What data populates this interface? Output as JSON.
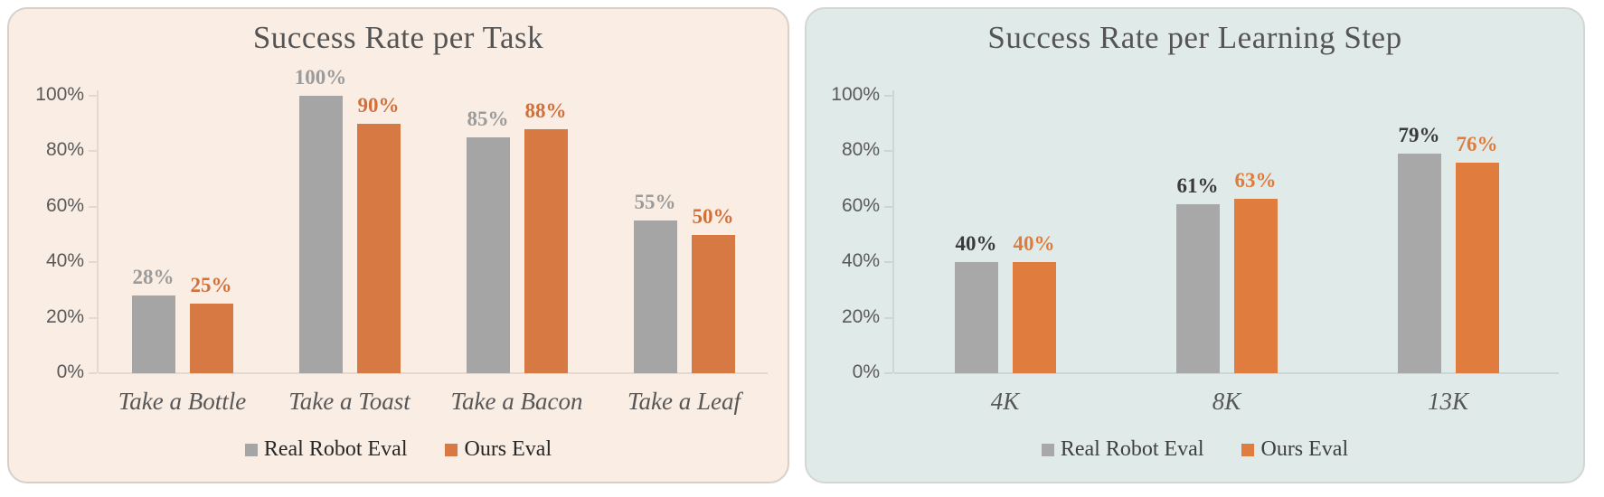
{
  "chart_data": [
    {
      "type": "bar",
      "title": "Success Rate per Task",
      "categories": [
        "Take a Bottle",
        "Take a Toast",
        "Take a Bacon",
        "Take a Leaf"
      ],
      "series": [
        {
          "name": "Real Robot Eval",
          "values": [
            28,
            100,
            85,
            55
          ],
          "value_labels": [
            "28%",
            "100%",
            "85%",
            "55%"
          ],
          "bar_color": "#A5A5A5",
          "label_color": "#9B9B9B"
        },
        {
          "name": "Ours Eval",
          "values": [
            25,
            90,
            88,
            50
          ],
          "value_labels": [
            "25%",
            "90%",
            "88%",
            "50%"
          ],
          "bar_color": "#D77943",
          "label_color": "#D2703A"
        }
      ],
      "xlabel": "",
      "ylabel": "",
      "ylim": [
        0,
        100
      ],
      "yticks": [
        {
          "value": 0,
          "label": "0%"
        },
        {
          "value": 20,
          "label": "20%"
        },
        {
          "value": 40,
          "label": "40%"
        },
        {
          "value": 60,
          "label": "60%"
        },
        {
          "value": 80,
          "label": "80%"
        },
        {
          "value": 100,
          "label": "100%"
        }
      ],
      "grid": false,
      "legend_position": "bottom",
      "colors": {
        "panel_bg": "#FAEDE4",
        "panel_border": "#D7D0CA",
        "axis": "#E4D9D0",
        "tick_text": "#595959",
        "category_text": "#575757",
        "title_text": "#545454",
        "legend_text": "#272727"
      }
    },
    {
      "type": "bar",
      "title": "Success Rate per Learning Step",
      "categories": [
        "4K",
        "8K",
        "13K"
      ],
      "series": [
        {
          "name": "Real Robot Eval",
          "values": [
            40,
            61,
            79
          ],
          "value_labels": [
            "40%",
            "61%",
            "79%"
          ],
          "bar_color": "#A8A8A8",
          "label_color": "#3A3A3A"
        },
        {
          "name": "Ours Eval",
          "values": [
            40,
            63,
            76
          ],
          "value_labels": [
            "40%",
            "63%",
            "76%"
          ],
          "bar_color": "#E07D3E",
          "label_color": "#DF7B3C"
        }
      ],
      "xlabel": "",
      "ylabel": "",
      "ylim": [
        0,
        100
      ],
      "yticks": [
        {
          "value": 0,
          "label": "0%"
        },
        {
          "value": 20,
          "label": "20%"
        },
        {
          "value": 40,
          "label": "40%"
        },
        {
          "value": 60,
          "label": "60%"
        },
        {
          "value": 80,
          "label": "80%"
        },
        {
          "value": 100,
          "label": "100%"
        }
      ],
      "grid": false,
      "legend_position": "bottom",
      "colors": {
        "panel_bg": "#E0EAE8",
        "panel_border": "#D2D7D5",
        "axis": "#CBD7D5",
        "tick_text": "#595959",
        "category_text": "#575757",
        "title_text": "#555555",
        "legend_text": "#3F3F3F"
      }
    }
  ]
}
